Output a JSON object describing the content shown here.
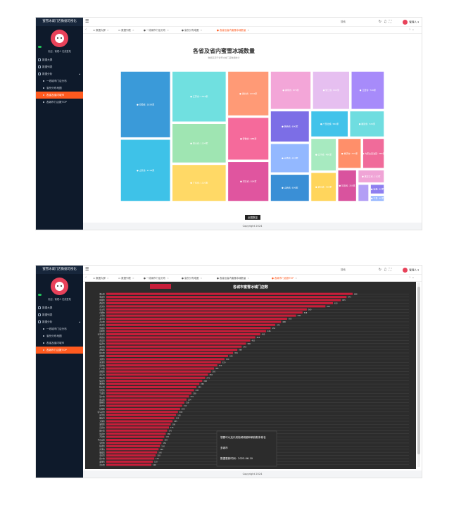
{
  "app": {
    "brand": "蜜雪冰城门店数据可视化",
    "greeting": "欢迎，管理人 在线登陆",
    "user": "管理人",
    "search_placeholder": "搜索",
    "footer": "Copyright 2024"
  },
  "sidebar_items": [
    {
      "label": "数据大屏",
      "type": "item"
    },
    {
      "label": "数据列表",
      "type": "item"
    },
    {
      "label": "数据分析",
      "type": "group"
    },
    {
      "label": "一线城市门店分布",
      "type": "sub"
    },
    {
      "label": "省份分布地图",
      "type": "sub"
    },
    {
      "label": "各省及省内城市",
      "type": "sub"
    },
    {
      "label": "各城市门店数TOP",
      "type": "sub"
    }
  ],
  "tabs_1": [
    {
      "label": "数据大屏"
    },
    {
      "label": "数据列表"
    },
    {
      "label": "一线城市门店分布"
    },
    {
      "label": "省份分布地图"
    },
    {
      "label": "各省及省内蜜雪冰城数量"
    }
  ],
  "tabs_2": [
    {
      "label": "数据大屏"
    },
    {
      "label": "数据列表"
    },
    {
      "label": "一线城市门店分布"
    },
    {
      "label": "省份分布地图"
    },
    {
      "label": "各省及省内蜜雪冰城数量"
    },
    {
      "label": "各城市门店数TOP"
    }
  ],
  "screenshot_1": {
    "active_menu": 5,
    "active_tab": 4
  },
  "screenshot_2": {
    "active_menu": 6,
    "active_tab": 5
  },
  "chart_data": [
    {
      "type": "treemap",
      "title": "各省及省内蜜雪冰城数量",
      "subtitle": "数据来源于蜜雪冰城门店数据统计",
      "footer_label": "全国数量",
      "items": [
        {
          "name": "河南省",
          "value": 1839,
          "color": "#3a9ad9"
        },
        {
          "name": "山东省",
          "value": 1718,
          "color": "#3ec2e8"
        },
        {
          "name": "江苏省",
          "value": 1524,
          "color": "#70e0e0"
        },
        {
          "name": "四川省",
          "value": 1194,
          "color": "#9fe5b2"
        },
        {
          "name": "广东省",
          "value": 1120,
          "color": "#ffd966"
        },
        {
          "name": "湖北省",
          "value": 1032,
          "color": "#ff9a76"
        },
        {
          "name": "安徽省",
          "value": 988,
          "color": "#f56a9b"
        },
        {
          "name": "河北省",
          "value": 924,
          "color": "#e0559f"
        },
        {
          "name": "湖南省",
          "value": 876,
          "color": "#f3a6d8"
        },
        {
          "name": "浙江省",
          "value": 802,
          "color": "#e6bff0"
        },
        {
          "name": "江西省",
          "value": 720,
          "color": "#a78bfa"
        },
        {
          "name": "陕西省",
          "value": 690,
          "color": "#7c6ee6"
        },
        {
          "name": "云南省",
          "value": 652,
          "color": "#93b8ff"
        },
        {
          "name": "山西省",
          "value": 606,
          "color": "#3a8fd6"
        },
        {
          "name": "广西壮族",
          "value": 560,
          "color": "#42c3ea"
        },
        {
          "name": "福建省",
          "value": 520,
          "color": "#6fdde0"
        },
        {
          "name": "辽宁省",
          "value": 480,
          "color": "#a7eac0"
        },
        {
          "name": "贵州省",
          "value": 430,
          "color": "#ffd55c"
        },
        {
          "name": "重庆市",
          "value": 410,
          "color": "#ff8f6a"
        },
        {
          "name": "内蒙古自治区",
          "value": 380,
          "color": "#f06b9a"
        },
        {
          "name": "甘肃省",
          "value": 350,
          "color": "#d9539e"
        },
        {
          "name": "黑龙江省",
          "value": 210,
          "color": "#f0a4d6"
        },
        {
          "name": "吉林省",
          "value": 120,
          "color": "#b39ff5"
        },
        {
          "name": "新疆",
          "value": 90,
          "color": "#8e7ff0"
        },
        {
          "name": "宁夏",
          "value": 60,
          "color": "#9ab9ff"
        }
      ]
    },
    {
      "type": "bar",
      "orientation": "horizontal",
      "title": "各城市蜜雪冰城门店数",
      "info_lines": [
        "想要可以连乐其她城城都和朝我数条卷名",
        "多城市",
        "数据更新时间：2023-06-10"
      ],
      "categories": [
        "郑州市",
        "重庆市",
        "成都市",
        "西安市",
        "武汉市",
        "长沙市",
        "合肥市",
        "上海市",
        "北京市",
        "苏州市",
        "南京市",
        "济南市",
        "昆明市",
        "石家庄市",
        "南昌市",
        "青岛市",
        "临沂市",
        "南宁市",
        "洛阳市",
        "徐州市",
        "贵阳市",
        "太原市",
        "天津市",
        "深圳市",
        "广州市",
        "南阳市",
        "商丘市",
        "周口市",
        "保定市",
        "潍坊市",
        "杭州市",
        "沈阳市",
        "宁波市",
        "温州市",
        "唐山市",
        "邯郸市",
        "新乡市",
        "信阳市",
        "驻马店市",
        "济宁市",
        "烟台市",
        "无锡市",
        "襄阳市",
        "宜昌市",
        "赣州市",
        "许昌市",
        "开封市",
        "平顶山市",
        "安阳市",
        "焦作市",
        "菏泽市",
        "聊城市",
        "泰安市",
        "德州市",
        "淄博市",
        "滨州市"
      ],
      "values": [
        688,
        671,
        655,
        633,
        612,
        560,
        548,
        530,
        505,
        488,
        472,
        459,
        446,
        430,
        416,
        402,
        390,
        378,
        366,
        354,
        340,
        330,
        320,
        310,
        301,
        292,
        284,
        276,
        268,
        260,
        252,
        245,
        238,
        231,
        224,
        218,
        212,
        206,
        200,
        195,
        190,
        185,
        180,
        175,
        170,
        166,
        162,
        158,
        154,
        150,
        146,
        142,
        138,
        134,
        130,
        126
      ]
    }
  ]
}
